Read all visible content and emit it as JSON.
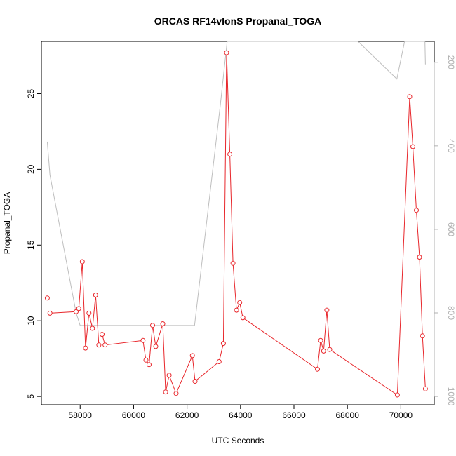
{
  "chart_data": {
    "type": "line",
    "title": "ORCAS RF14vlonS Propanal_TOGA",
    "xlabel": "UTC Seconds",
    "ylabel": "Propanal_TOGA",
    "xlim": [
      56550,
      71250
    ],
    "ylim": [
      4.45,
      28.45
    ],
    "y2lim": [
      1020,
      150
    ],
    "y2_reversed": true,
    "x_ticks": [
      {
        "value": 58000,
        "label": "58000"
      },
      {
        "value": 60000,
        "label": "60000"
      },
      {
        "value": 62000,
        "label": "62000"
      },
      {
        "value": 64000,
        "label": "64000"
      },
      {
        "value": 66000,
        "label": "66000"
      },
      {
        "value": 68000,
        "label": "68000"
      },
      {
        "value": 70000,
        "label": "70000"
      }
    ],
    "y_ticks": [
      {
        "value": 5,
        "label": "5"
      },
      {
        "value": 10,
        "label": "10"
      },
      {
        "value": 15,
        "label": "15"
      },
      {
        "value": 20,
        "label": "20"
      },
      {
        "value": 25,
        "label": "25"
      }
    ],
    "y2_ticks": [
      {
        "value": 200,
        "label": "200"
      },
      {
        "value": 400,
        "label": "400"
      },
      {
        "value": 600,
        "label": "600"
      },
      {
        "value": 800,
        "label": "800"
      },
      {
        "value": 1000,
        "label": "1000"
      }
    ],
    "series": [
      {
        "color": "#e8262b",
        "axis": "left",
        "markers": true,
        "segments": [
          [
            [
              56770,
              11.5
            ]
          ],
          [
            [
              56870,
              10.5
            ],
            [
              57850,
              10.6
            ]
          ],
          [
            [
              57950,
              10.8
            ],
            [
              58080,
              13.9
            ],
            [
              58200,
              8.2
            ],
            [
              58330,
              10.5
            ],
            [
              58460,
              9.5
            ],
            [
              58580,
              11.7
            ],
            [
              58700,
              8.4
            ]
          ],
          [
            [
              58820,
              9.1
            ],
            [
              58930,
              8.4
            ],
            [
              60350,
              8.7
            ],
            [
              60460,
              7.4
            ],
            [
              60580,
              7.1
            ],
            [
              60710,
              9.7
            ],
            [
              60830,
              8.3
            ],
            [
              61090,
              9.8
            ],
            [
              61200,
              5.3
            ],
            [
              61330,
              6.4
            ],
            [
              61590,
              5.2
            ],
            [
              62200,
              7.7
            ],
            [
              62300,
              6.0
            ],
            [
              63200,
              7.3
            ],
            [
              63360,
              8.5
            ],
            [
              63480,
              27.7
            ],
            [
              63600,
              21.0
            ],
            [
              63720,
              13.8
            ],
            [
              63850,
              10.7
            ],
            [
              63970,
              11.2
            ],
            [
              64090,
              10.2
            ],
            [
              66880,
              6.8
            ],
            [
              67000,
              8.7
            ],
            [
              67110,
              8.0
            ],
            [
              67230,
              10.7
            ],
            [
              67340,
              8.1
            ],
            [
              69870,
              5.1
            ],
            [
              70330,
              24.8
            ],
            [
              70450,
              21.5
            ],
            [
              70580,
              17.3
            ],
            [
              70700,
              14.2
            ],
            [
              70810,
              9.0
            ],
            [
              70920,
              5.5
            ]
          ]
        ]
      },
      {
        "color": "#bebebe",
        "axis": "right",
        "markers": false,
        "points": [
          [
            56770,
            390
          ],
          [
            56870,
            470
          ],
          [
            57850,
            800
          ],
          [
            58000,
            830
          ],
          [
            58200,
            830
          ],
          [
            62280,
            830
          ],
          [
            63250,
            300
          ],
          [
            63500,
            150
          ],
          [
            68400,
            150
          ],
          [
            69850,
            240
          ],
          [
            70140,
            150
          ],
          [
            70900,
            150
          ],
          [
            70920,
            205
          ]
        ]
      }
    ]
  }
}
